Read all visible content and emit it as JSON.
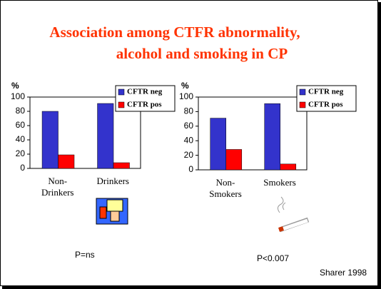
{
  "title": [
    "Association among CTFR abnormality,",
    "alcohol and smoking in CP"
  ],
  "source": "Sharer 1998",
  "chart_data": [
    {
      "type": "bar",
      "ylabel": "%",
      "categories": [
        "Non-\nDrinkers",
        "Drinkers"
      ],
      "series": [
        {
          "name": "CFTR neg",
          "color": "#3333cc",
          "values": [
            80,
            91
          ]
        },
        {
          "name": "CFTR pos",
          "color": "#ff0000",
          "values": [
            19,
            8
          ]
        }
      ],
      "ylim": [
        0,
        100
      ],
      "yticks": [
        0,
        20,
        40,
        60,
        80,
        100
      ],
      "annotation": "P=ns"
    },
    {
      "type": "bar",
      "ylabel": "%",
      "categories": [
        "Non-\nSmokers",
        "Smokers"
      ],
      "series": [
        {
          "name": "CFTR neg",
          "color": "#3333cc",
          "values": [
            71,
            91
          ]
        },
        {
          "name": "CFTR pos",
          "color": "#ff0000",
          "values": [
            28,
            8
          ]
        }
      ],
      "ylim": [
        0,
        100
      ],
      "yticks": [
        0,
        20,
        40,
        60,
        80,
        100
      ],
      "annotation": "P<0.007"
    }
  ]
}
